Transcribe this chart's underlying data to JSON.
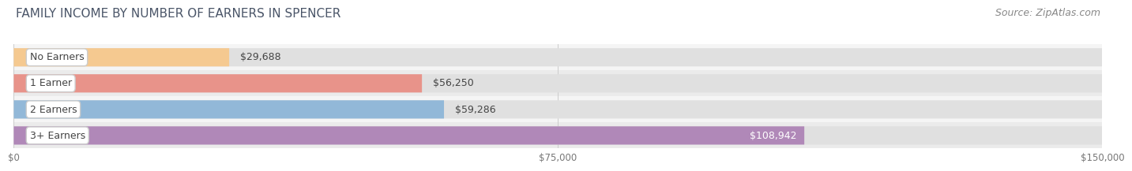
{
  "title": "FAMILY INCOME BY NUMBER OF EARNERS IN SPENCER",
  "source": "Source: ZipAtlas.com",
  "categories": [
    "No Earners",
    "1 Earner",
    "2 Earners",
    "3+ Earners"
  ],
  "values": [
    29688,
    56250,
    59286,
    108942
  ],
  "bar_colors": [
    "#f5c990",
    "#e8938a",
    "#92b8d8",
    "#b088b8"
  ],
  "label_colors": [
    "#555555",
    "#555555",
    "#555555",
    "#ffffff"
  ],
  "value_labels": [
    "$29,688",
    "$56,250",
    "$59,286",
    "$108,942"
  ],
  "row_colors": [
    "#f5f5f5",
    "#ebebeb",
    "#f5f5f5",
    "#ebebeb"
  ],
  "xlim": [
    0,
    150000
  ],
  "xticks": [
    0,
    75000,
    150000
  ],
  "xtick_labels": [
    "$0",
    "$75,000",
    "$150,000"
  ],
  "background_color": "#ffffff",
  "bar_bg_color": "#e0e0e0",
  "title_fontsize": 11,
  "source_fontsize": 9,
  "label_fontsize": 9,
  "value_fontsize": 9
}
